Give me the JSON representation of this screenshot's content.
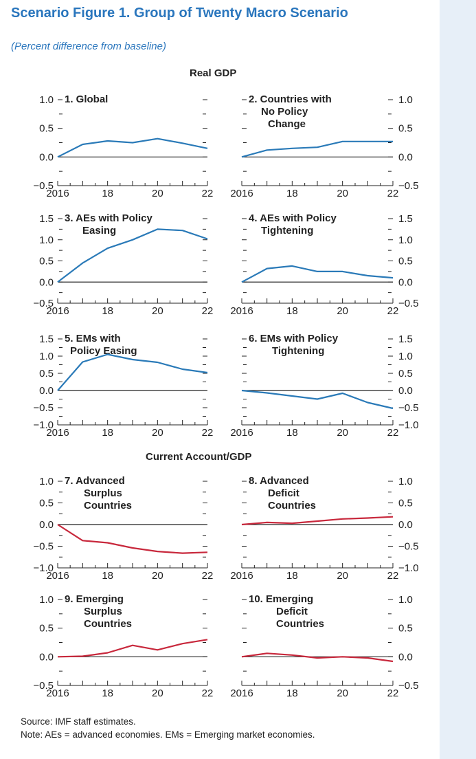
{
  "figure": {
    "title": "Scenario Figure 1.  Group of Twenty Macro Scenario",
    "subtitle": "(Percent difference from baseline)",
    "section_gdp": "Real GDP",
    "section_ca": "Current Account/GDP",
    "source": "Source: IMF staff estimates.",
    "note": "Note: AEs = advanced economies. EMs = Emerging market economies."
  },
  "colors": {
    "gdp_line": "#2a7ab8",
    "ca_line": "#c8283c",
    "title": "#2a76bd",
    "axis": "#222222"
  },
  "chart_data": [
    {
      "type": "line",
      "title": "1. Global",
      "x_ticks": [
        "2016",
        "18",
        "20",
        "22"
      ],
      "yticks": [
        "1.0",
        "0.5",
        "0.0",
        "−0.5"
      ],
      "ylim": [
        -0.5,
        1.0
      ],
      "x": [
        2016,
        2017,
        2018,
        2019,
        2020,
        2021,
        2022
      ],
      "values": [
        0.0,
        0.22,
        0.28,
        0.25,
        0.32,
        0.24,
        0.15
      ]
    },
    {
      "type": "line",
      "title": "2. Countries with No Policy Change",
      "x_ticks": [
        "2016",
        "18",
        "20",
        "22"
      ],
      "yticks": [
        "1.0",
        "0.5",
        "0.0",
        "−0.5"
      ],
      "ylim": [
        -0.5,
        1.0
      ],
      "x": [
        2016,
        2017,
        2018,
        2019,
        2020,
        2021,
        2022
      ],
      "values": [
        0.0,
        0.12,
        0.15,
        0.17,
        0.27,
        0.27,
        0.27
      ]
    },
    {
      "type": "line",
      "title": "3. AEs with Policy Easing",
      "x_ticks": [
        "2016",
        "18",
        "20",
        "22"
      ],
      "yticks": [
        "1.5",
        "1.0",
        "0.5",
        "0.0",
        "−0.5"
      ],
      "ylim": [
        -0.5,
        1.5
      ],
      "x": [
        2016,
        2017,
        2018,
        2019,
        2020,
        2021,
        2022
      ],
      "values": [
        0.0,
        0.45,
        0.8,
        1.0,
        1.25,
        1.22,
        1.02
      ]
    },
    {
      "type": "line",
      "title": "4. AEs with Policy Tightening",
      "x_ticks": [
        "2016",
        "18",
        "20",
        "22"
      ],
      "yticks": [
        "1.5",
        "1.0",
        "0.5",
        "0.0",
        "−0.5"
      ],
      "ylim": [
        -0.5,
        1.5
      ],
      "x": [
        2016,
        2017,
        2018,
        2019,
        2020,
        2021,
        2022
      ],
      "values": [
        0.0,
        0.32,
        0.38,
        0.25,
        0.25,
        0.15,
        0.1
      ]
    },
    {
      "type": "line",
      "title": "5. EMs with Policy Easing",
      "x_ticks": [
        "2016",
        "18",
        "20",
        "22"
      ],
      "yticks": [
        "1.5",
        "1.0",
        "0.5",
        "0.0",
        "−0.5",
        "−1.0"
      ],
      "ylim": [
        -1.0,
        1.5
      ],
      "x": [
        2016,
        2017,
        2018,
        2019,
        2020,
        2021,
        2022
      ],
      "values": [
        0.0,
        0.83,
        1.05,
        0.9,
        0.82,
        0.62,
        0.52
      ]
    },
    {
      "type": "line",
      "title": "6. EMs with Policy Tightening",
      "x_ticks": [
        "2016",
        "18",
        "20",
        "22"
      ],
      "yticks": [
        "1.5",
        "1.0",
        "0.5",
        "0.0",
        "−0.5",
        "−1.0"
      ],
      "ylim": [
        -1.0,
        1.5
      ],
      "x": [
        2016,
        2017,
        2018,
        2019,
        2020,
        2021,
        2022
      ],
      "values": [
        0.0,
        -0.07,
        -0.16,
        -0.25,
        -0.08,
        -0.35,
        -0.52
      ]
    },
    {
      "type": "line",
      "title": "7. Advanced Surplus Countries",
      "x_ticks": [
        "2016",
        "18",
        "20",
        "22"
      ],
      "yticks": [
        "1.0",
        "0.5",
        "0.0",
        "−0.5",
        "−1.0"
      ],
      "ylim": [
        -1.0,
        1.0
      ],
      "x": [
        2016,
        2017,
        2018,
        2019,
        2020,
        2021,
        2022
      ],
      "values": [
        0.0,
        -0.37,
        -0.42,
        -0.54,
        -0.62,
        -0.66,
        -0.64
      ]
    },
    {
      "type": "line",
      "title": "8. Advanced Deficit Countries",
      "x_ticks": [
        "2016",
        "18",
        "20",
        "22"
      ],
      "yticks": [
        "1.0",
        "0.5",
        "0.0",
        "−0.5",
        "−1.0"
      ],
      "ylim": [
        -1.0,
        1.0
      ],
      "x": [
        2016,
        2017,
        2018,
        2019,
        2020,
        2021,
        2022
      ],
      "values": [
        0.0,
        0.05,
        0.03,
        0.08,
        0.13,
        0.15,
        0.18
      ]
    },
    {
      "type": "line",
      "title": "9. Emerging Surplus Countries",
      "x_ticks": [
        "2016",
        "18",
        "20",
        "22"
      ],
      "yticks": [
        "1.0",
        "0.5",
        "0.0",
        "−0.5"
      ],
      "ylim": [
        -0.5,
        1.0
      ],
      "x": [
        2016,
        2017,
        2018,
        2019,
        2020,
        2021,
        2022
      ],
      "values": [
        0.0,
        0.01,
        0.07,
        0.2,
        0.12,
        0.23,
        0.3
      ]
    },
    {
      "type": "line",
      "title": "10. Emerging Deficit Countries",
      "x_ticks": [
        "2016",
        "18",
        "20",
        "22"
      ],
      "yticks": [
        "1.0",
        "0.5",
        "0.0",
        "−0.5"
      ],
      "ylim": [
        -0.5,
        1.0
      ],
      "x": [
        2016,
        2017,
        2018,
        2019,
        2020,
        2021,
        2022
      ],
      "values": [
        0.0,
        0.06,
        0.03,
        -0.02,
        0.0,
        -0.02,
        -0.08
      ]
    }
  ]
}
